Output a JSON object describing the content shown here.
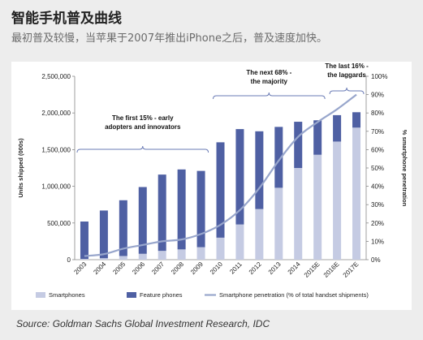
{
  "header": {
    "title": "智能手机普及曲线",
    "subtitle": "最初普及较慢，当苹果于2007年推出iPhone之后，普及速度加快。"
  },
  "footer": {
    "source": "Source: Goldman Sachs Global Investment Research, IDC"
  },
  "colors": {
    "smartphones": "#c5cbe3",
    "feature_phones": "#4f60a3",
    "penetration_line": "#98a6cc",
    "background": "#ededed",
    "panel": "#ffffff"
  },
  "chart_data": {
    "type": "bar",
    "stacked": true,
    "categories": [
      "2003",
      "2004",
      "2005",
      "2006",
      "2007",
      "2008",
      "2009",
      "2010",
      "2011",
      "2012",
      "2013",
      "2014",
      "2015E",
      "2016E",
      "2017E"
    ],
    "series": [
      {
        "name": "Smartphones",
        "axis": "left",
        "values": [
          10000,
          20000,
          50000,
          80000,
          120000,
          140000,
          170000,
          300000,
          480000,
          690000,
          980000,
          1250000,
          1430000,
          1610000,
          1800000
        ]
      },
      {
        "name": "Feature phones",
        "axis": "left",
        "values": [
          510000,
          650000,
          760000,
          910000,
          1040000,
          1090000,
          1040000,
          1300000,
          1300000,
          1060000,
          830000,
          630000,
          470000,
          360000,
          210000
        ]
      },
      {
        "name": "Smartphone penetration (% of total handset shipments)",
        "type": "line",
        "axis": "right",
        "values": [
          2,
          3,
          6,
          8,
          10,
          11,
          14,
          19,
          27,
          39,
          54,
          67,
          75,
          82,
          90
        ]
      }
    ],
    "ylabel": "Units shipped (000s)",
    "ylim": [
      0,
      2500000
    ],
    "yticks": [
      "0",
      "500,000",
      "1,000,000",
      "1,500,000",
      "2,000,000",
      "2,500,000"
    ],
    "y2label": "% smartphone penetration",
    "y2lim": [
      0,
      100
    ],
    "y2ticks": [
      "0%",
      "10%",
      "20%",
      "30%",
      "40%",
      "50%",
      "60%",
      "70%",
      "80%",
      "90%",
      "100%"
    ],
    "grid": false,
    "legend_position": "bottom",
    "annotations": [
      {
        "lines": [
          "The first 15% - early",
          "adopters and innovators"
        ],
        "span": [
          "2003",
          "2009"
        ]
      },
      {
        "lines": [
          "The next 68% -",
          "the majority"
        ],
        "span": [
          "2010",
          "2015E"
        ]
      },
      {
        "lines": [
          "The last 16% -",
          "the laggards"
        ],
        "span": [
          "2016E",
          "2017E"
        ]
      }
    ]
  }
}
